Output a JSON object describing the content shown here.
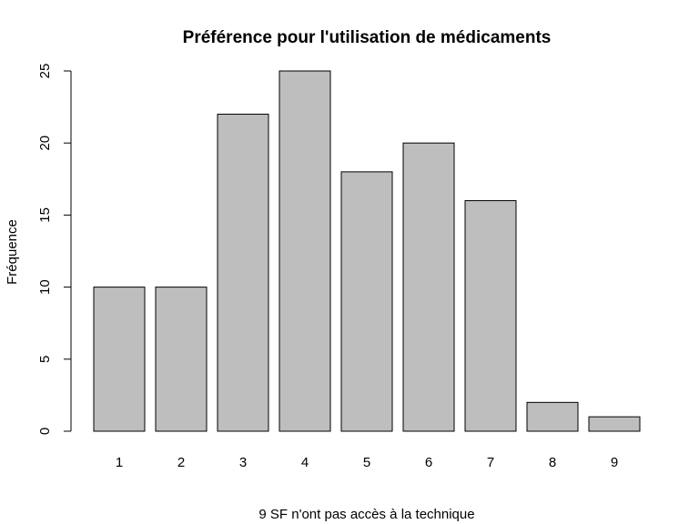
{
  "chart_data": {
    "type": "bar",
    "title": "Préférence pour l'utilisation de médicaments",
    "xlabel": "9 SF n'ont pas accès à la technique",
    "ylabel": "Fréquence",
    "categories": [
      "1",
      "2",
      "3",
      "4",
      "5",
      "6",
      "7",
      "8",
      "9"
    ],
    "values": [
      10,
      10,
      22,
      25,
      18,
      20,
      16,
      2,
      1
    ],
    "ylim": [
      0,
      25
    ],
    "yticks": [
      0,
      5,
      10,
      15,
      20,
      25
    ],
    "grid": false,
    "bar_color": "#bebebe",
    "edge_color": "#000000"
  }
}
